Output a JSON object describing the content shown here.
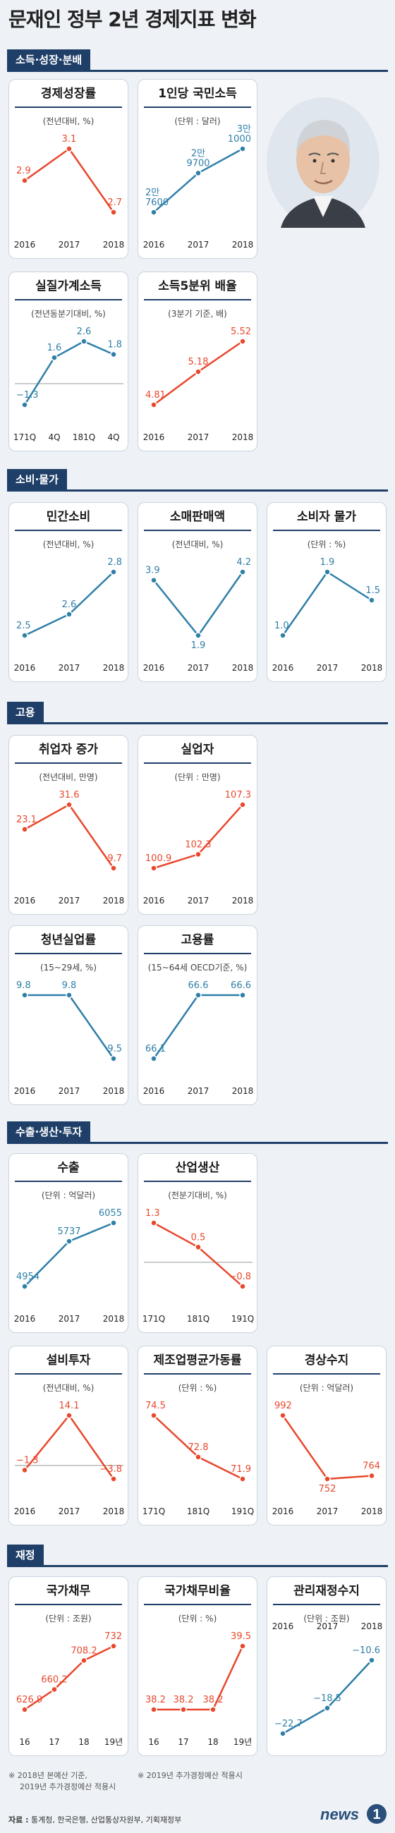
{
  "title": "문재인 정부 2년 경제지표 변화",
  "sections": [
    {
      "id": "income",
      "label": "소득·성장·분배"
    },
    {
      "id": "consumption",
      "label": "소비·물가"
    },
    {
      "id": "employment",
      "label": "고용"
    },
    {
      "id": "trade",
      "label": "수출·생산·투자"
    },
    {
      "id": "finance",
      "label": "재정"
    }
  ],
  "colors": {
    "red": "#e8472c",
    "blue": "#2f7fa8",
    "navy": "#1f3f68"
  },
  "footnotes": {
    "left": [
      "※ 2018년 본예산 기준,",
      "2019년 추가경정예산 적용시"
    ],
    "middle": [
      "※ 2019년 추가경정예산 적용시"
    ]
  },
  "sources": {
    "label": "자료 :",
    "text": "통계청, 한국은행, 산업통상자원부, 기획재정부"
  },
  "logo": {
    "text": "news",
    "mark": "1"
  },
  "chart_data": [
    {
      "id": "growth",
      "type": "line",
      "title": "경제성장률",
      "unit": "(전년대비, %)",
      "color": "red",
      "categories": [
        "2016",
        "2017",
        "2018"
      ],
      "values": [
        2.9,
        3.1,
        2.7
      ],
      "labels": [
        "2.9",
        "3.1",
        "2.7"
      ]
    },
    {
      "id": "gni",
      "type": "line",
      "title": "1인당 국민소득",
      "unit": "(단위 : 달러)",
      "color": "blue",
      "categories": [
        "2016",
        "2017",
        "2018"
      ],
      "values": [
        27600,
        29700,
        31000
      ],
      "labels": [
        "2만\n7600",
        "2만\n9700",
        "3만\n1000"
      ]
    },
    {
      "id": "household",
      "type": "line",
      "title": "실질가계소득",
      "unit": "(전년동분기대비, %)",
      "color": "blue",
      "categories": [
        "171Q",
        "4Q",
        "181Q",
        "4Q"
      ],
      "values": [
        -1.3,
        1.6,
        2.6,
        1.8
      ],
      "labels": [
        "−1.3",
        "1.6",
        "2.6",
        "1.8"
      ],
      "zero_line": true
    },
    {
      "id": "quintile",
      "type": "line",
      "title": "소득5분위 배율",
      "unit": "(3분기 기준, 배)",
      "color": "red",
      "categories": [
        "2016",
        "2017",
        "2018"
      ],
      "values": [
        4.81,
        5.18,
        5.52
      ],
      "labels": [
        "4.81",
        "5.18",
        "5.52"
      ]
    },
    {
      "id": "private",
      "type": "line",
      "title": "민간소비",
      "unit": "(전년대비, %)",
      "color": "blue",
      "categories": [
        "2016",
        "2017",
        "2018"
      ],
      "values": [
        2.5,
        2.6,
        2.8
      ],
      "labels": [
        "2.5",
        "2.6",
        "2.8"
      ]
    },
    {
      "id": "retail",
      "type": "line",
      "title": "소매판매액",
      "unit": "(전년대비, %)",
      "color": "blue",
      "categories": [
        "2016",
        "2017",
        "2018"
      ],
      "values": [
        3.9,
        1.9,
        4.2
      ],
      "labels": [
        "3.9",
        "1.9",
        "4.2"
      ]
    },
    {
      "id": "cpi",
      "type": "line",
      "title": "소비자 물가",
      "unit": "(단위 : %)",
      "color": "blue",
      "categories": [
        "2016",
        "2017",
        "2018"
      ],
      "values": [
        1.0,
        1.9,
        1.5
      ],
      "labels": [
        "1.0",
        "1.9",
        "1.5"
      ]
    },
    {
      "id": "jobs",
      "type": "line",
      "title": "취업자 증가",
      "unit": "(전년대비, 만명)",
      "color": "red",
      "categories": [
        "2016",
        "2017",
        "2018"
      ],
      "values": [
        23.1,
        31.6,
        9.7
      ],
      "labels": [
        "23.1",
        "31.6",
        "9.7"
      ]
    },
    {
      "id": "unemployed",
      "type": "line",
      "title": "실업자",
      "unit": "(단위 : 만명)",
      "color": "red",
      "categories": [
        "2016",
        "2017",
        "2018"
      ],
      "values": [
        100.9,
        102.3,
        107.3
      ],
      "labels": [
        "100.9",
        "102.3",
        "107.3"
      ]
    },
    {
      "id": "youth",
      "type": "line",
      "title": "청년실업률",
      "unit": "(15~29세, %)",
      "color": "blue",
      "categories": [
        "2016",
        "2017",
        "2018"
      ],
      "values": [
        9.8,
        9.8,
        9.5
      ],
      "labels": [
        "9.8",
        "9.8",
        "9.5"
      ]
    },
    {
      "id": "emprate",
      "type": "line",
      "title": "고용률",
      "unit": "(15~64세 OECD기준, %)",
      "color": "blue",
      "categories": [
        "2016",
        "2017",
        "2018"
      ],
      "values": [
        66.1,
        66.6,
        66.6
      ],
      "labels": [
        "66.1",
        "66.6",
        "66.6"
      ]
    },
    {
      "id": "exports",
      "type": "line",
      "title": "수출",
      "unit": "(단위 : 억달러)",
      "color": "blue",
      "categories": [
        "2016",
        "2017",
        "2018"
      ],
      "values": [
        4954,
        5737,
        6055
      ],
      "labels": [
        "4954",
        "5737",
        "6055"
      ]
    },
    {
      "id": "industry",
      "type": "line",
      "title": "산업생산",
      "unit": "(전분기대비, %)",
      "color": "red",
      "categories": [
        "171Q",
        "181Q",
        "191Q"
      ],
      "values": [
        1.3,
        0.5,
        -0.8
      ],
      "labels": [
        "1.3",
        "0.5",
        "−0.8"
      ],
      "zero_line": true
    },
    {
      "id": "capex",
      "type": "line",
      "title": "설비투자",
      "unit": "(전년대비, %)",
      "color": "red",
      "categories": [
        "2016",
        "2017",
        "2018"
      ],
      "values": [
        -1.3,
        14.1,
        -3.8
      ],
      "labels": [
        "−1.3",
        "14.1",
        "−3.8"
      ],
      "zero_line": true
    },
    {
      "id": "utilization",
      "type": "line",
      "title": "제조업평균가동률",
      "unit": "(단위 : %)",
      "color": "red",
      "categories": [
        "171Q",
        "181Q",
        "191Q"
      ],
      "values": [
        74.5,
        72.8,
        71.9
      ],
      "labels": [
        "74.5",
        "72.8",
        "71.9"
      ]
    },
    {
      "id": "current",
      "type": "line",
      "title": "경상수지",
      "unit": "(단위 : 억달러)",
      "color": "red",
      "categories": [
        "2016",
        "2017",
        "2018"
      ],
      "values": [
        992,
        752,
        764
      ],
      "labels": [
        "992",
        "752",
        "764"
      ]
    },
    {
      "id": "debt",
      "type": "line",
      "title": "국가채무",
      "unit": "(단위 : 조원)",
      "color": "red",
      "categories": [
        "16",
        "17",
        "18",
        "19년"
      ],
      "values": [
        626.9,
        660.2,
        708.2,
        732
      ],
      "labels": [
        "626.9",
        "660.2",
        "708.2",
        "732"
      ]
    },
    {
      "id": "debtratio",
      "type": "line",
      "title": "국가채무비율",
      "unit": "(단위 : %)",
      "color": "red",
      "categories": [
        "16",
        "17",
        "18",
        "19년"
      ],
      "values": [
        38.2,
        38.2,
        38.2,
        39.5
      ],
      "labels": [
        "38.2",
        "38.2",
        "38.2",
        "39.5"
      ]
    },
    {
      "id": "balance",
      "type": "line",
      "title": "관리재정수지",
      "unit": "(단위 : 조원)",
      "color": "blue",
      "categories": [
        "2016",
        "2017",
        "2018"
      ],
      "values": [
        -22.7,
        -18.5,
        -10.6
      ],
      "labels": [
        "−22.7",
        "−18.5",
        "−10.6"
      ],
      "axis_top": true
    }
  ]
}
